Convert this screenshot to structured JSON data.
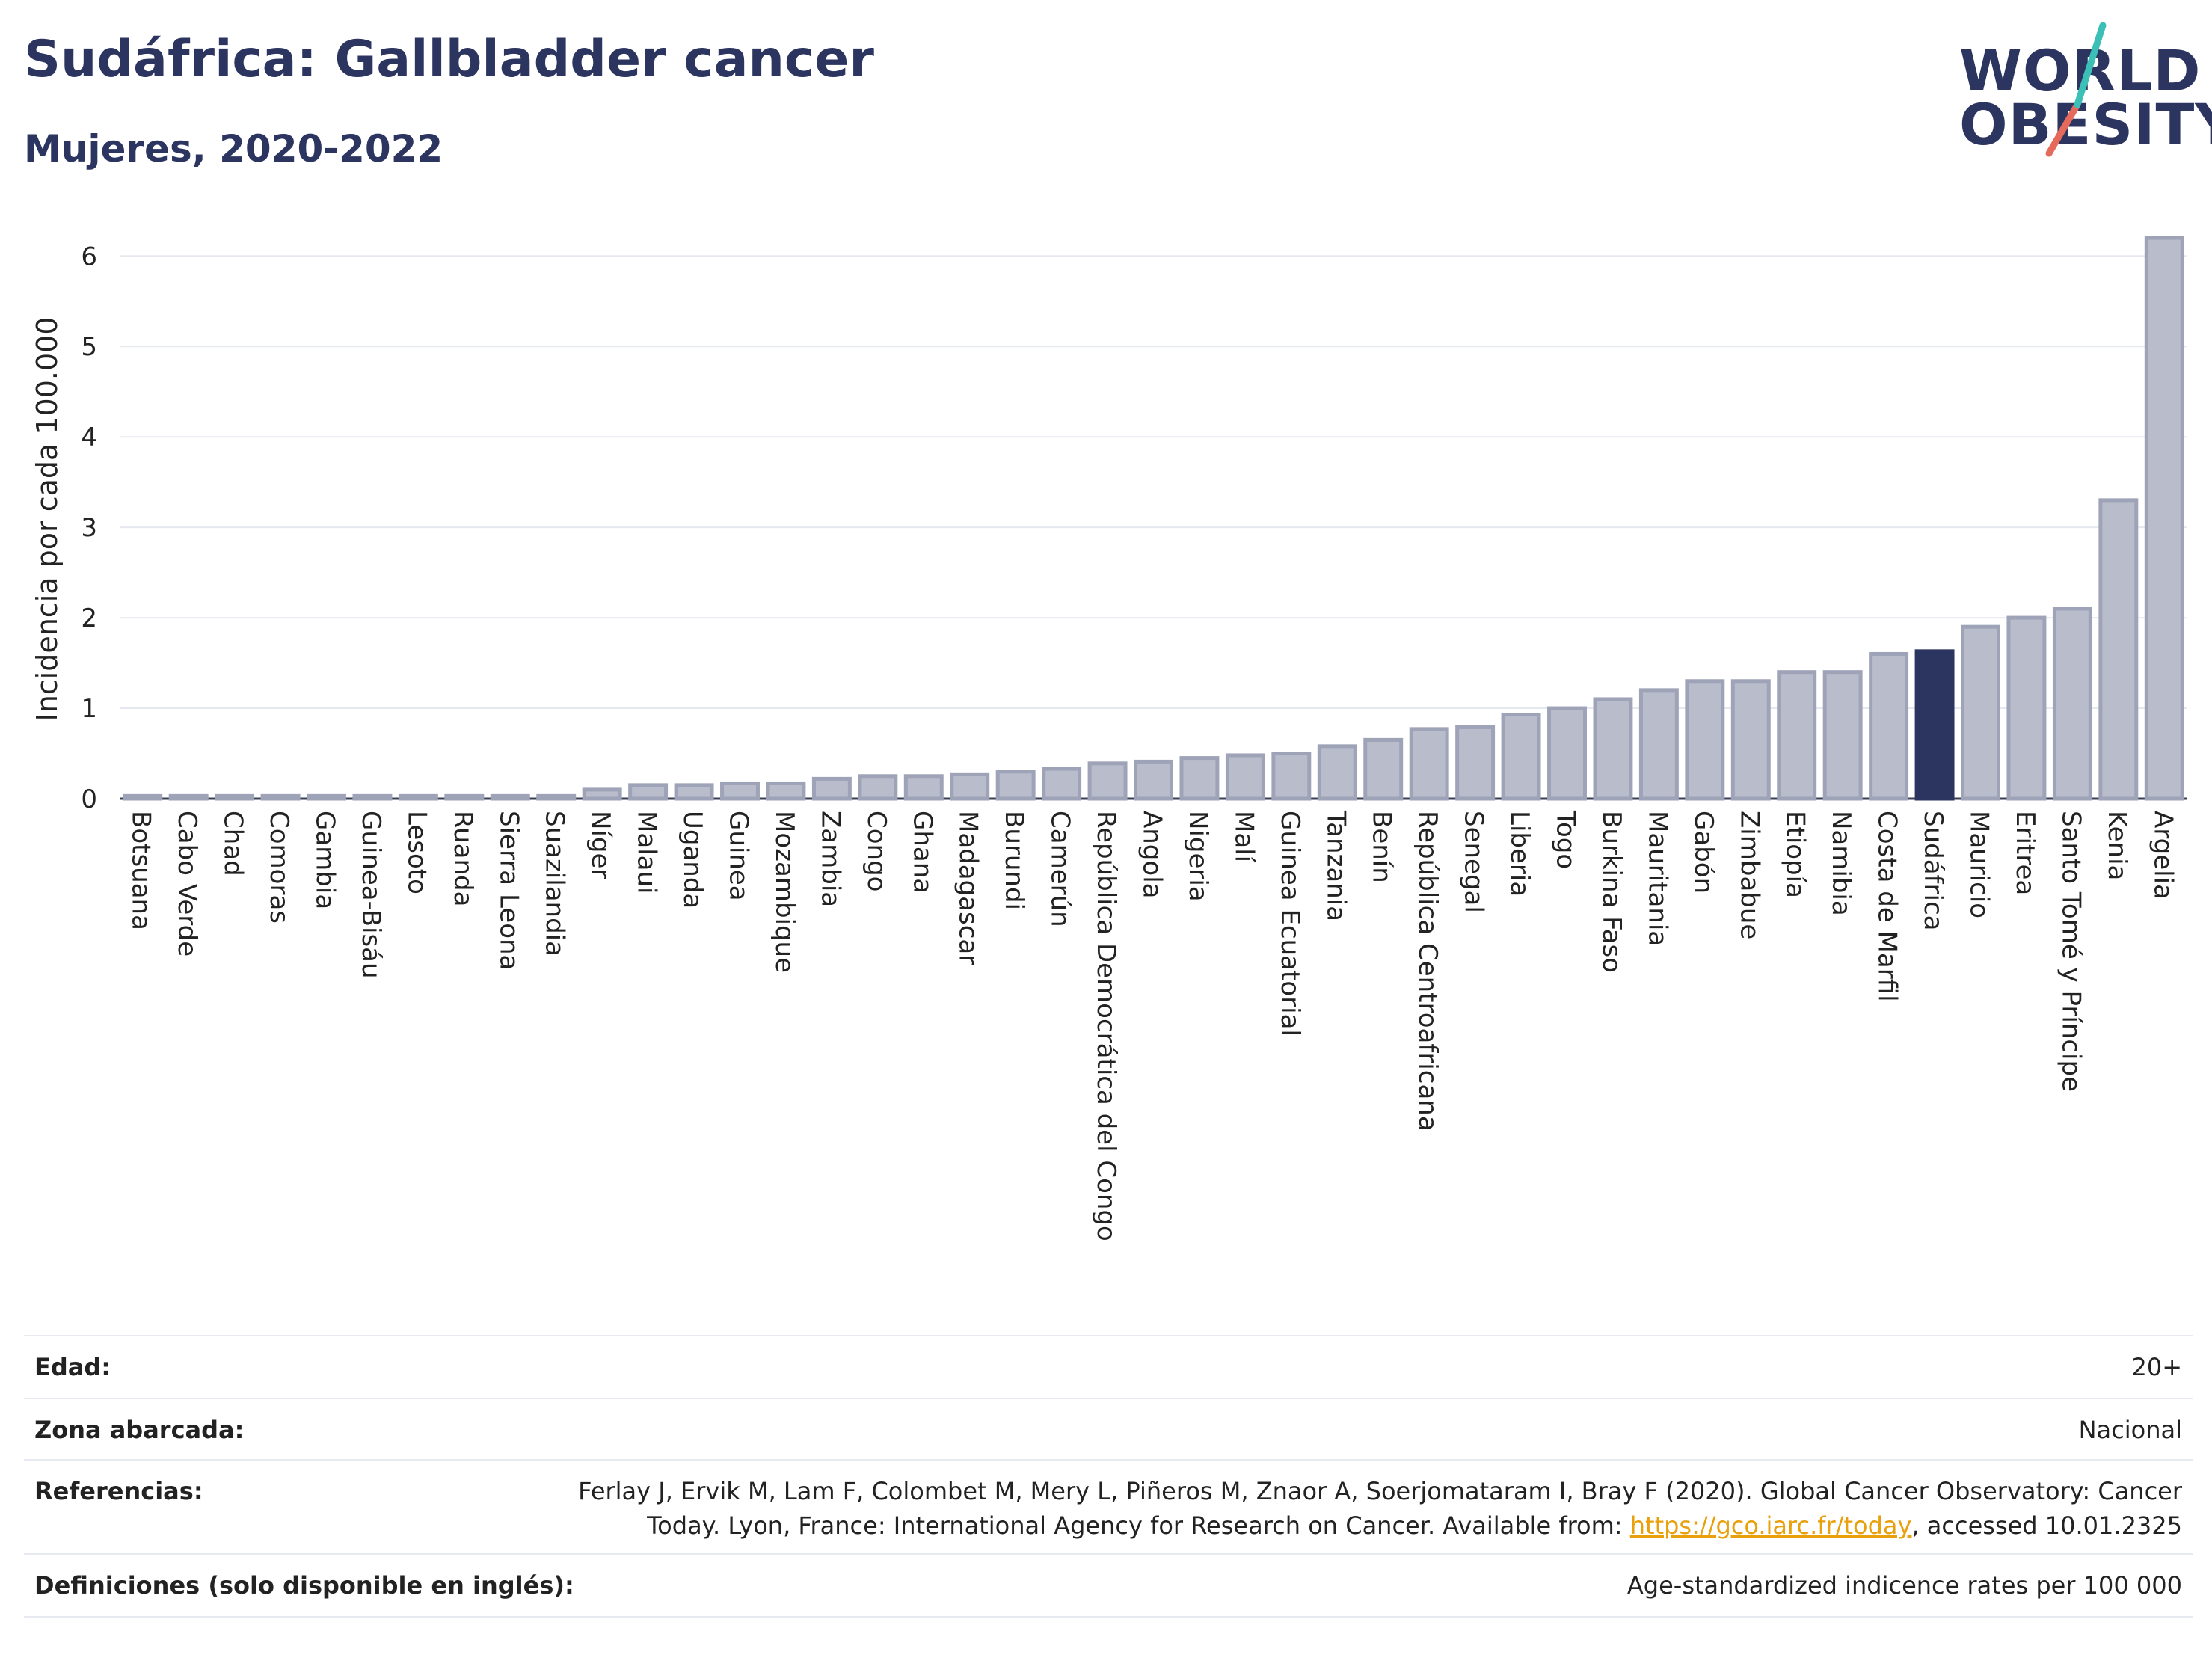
{
  "title": "Sudáfrica: Gallbladder cancer",
  "subtitle": "Mujeres, 2020-2022",
  "logo": {
    "line1": "WORLD",
    "line2": "OBESITY"
  },
  "colors": {
    "bar": "#b8bccb",
    "bar_border": "#9ea3b8",
    "highlight": "#2b3560",
    "grid": "#e6e8ef",
    "accent_teal": "#3bbfb6",
    "accent_red": "#e66a5c"
  },
  "chart_data": {
    "type": "bar",
    "ylabel": "Incidencia por cada 100.000",
    "xlabel": "",
    "ylim": [
      0,
      6.3
    ],
    "yticks": [
      0,
      1,
      2,
      3,
      4,
      5,
      6
    ],
    "highlight": "Sudáfrica",
    "categories": [
      "Botsuana",
      "Cabo Verde",
      "Chad",
      "Comoras",
      "Gambia",
      "Guinea-Bisáu",
      "Lesoto",
      "Ruanda",
      "Sierra Leona",
      "Suazilandia",
      "Níger",
      "Malaui",
      "Uganda",
      "Guinea",
      "Mozambique",
      "Zambia",
      "Congo",
      "Ghana",
      "Madagascar",
      "Burundi",
      "Camerún",
      "República Democrática del Congo",
      "Angola",
      "Nigeria",
      "Malí",
      "Guinea Ecuatorial",
      "Tanzania",
      "Benín",
      "República Centroafricana",
      "Senegal",
      "Liberia",
      "Togo",
      "Burkina Faso",
      "Mauritania",
      "Gabón",
      "Zimbabue",
      "Etiopía",
      "Namibia",
      "Costa de Marfil",
      "Sudáfrica",
      "Mauricio",
      "Eritrea",
      "Santo Tomé y Príncipe",
      "Kenia",
      "Argelia"
    ],
    "values": [
      0.03,
      0.03,
      0.03,
      0.03,
      0.03,
      0.03,
      0.03,
      0.03,
      0.03,
      0.03,
      0.1,
      0.15,
      0.15,
      0.17,
      0.17,
      0.22,
      0.25,
      0.25,
      0.27,
      0.3,
      0.33,
      0.39,
      0.41,
      0.45,
      0.48,
      0.5,
      0.58,
      0.65,
      0.77,
      0.79,
      0.93,
      1.0,
      1.1,
      1.2,
      1.3,
      1.3,
      1.4,
      1.4,
      1.6,
      1.63,
      1.9,
      2.0,
      2.1,
      3.3,
      6.2
    ]
  },
  "info": {
    "age": {
      "label": "Edad:",
      "value": "20+"
    },
    "area": {
      "label": "Zona abarcada:",
      "value": "Nacional"
    },
    "refs": {
      "label": "Referencias:",
      "line1": "Ferlay J, Ervik M, Lam F, Colombet M, Mery L, Piñeros M, Znaor A, Soerjomataram I, Bray F (2020). Global Cancer Observatory: Cancer",
      "line2_pre": "Today. Lyon, France: International Agency for Research on Cancer. Available from: ",
      "link": "https://gco.iarc.fr/today",
      "line2_post": ", accessed 10.01.2325"
    },
    "defs": {
      "label": "Definiciones (solo disponible en inglés):",
      "value": "Age-standardized indicence rates per 100 000"
    }
  }
}
